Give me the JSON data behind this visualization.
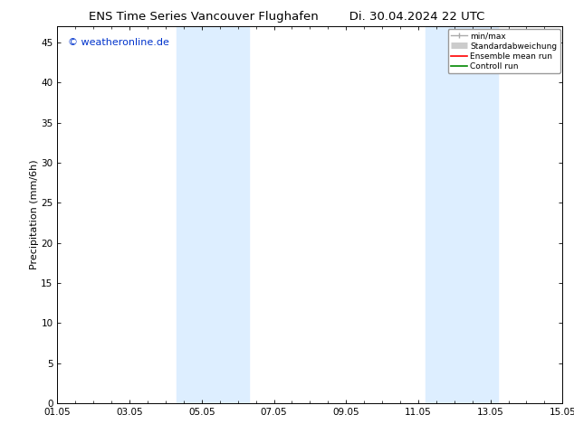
{
  "title": "ENS Time Series Vancouver Flughafen        Di. 30.04.2024 22 UTC",
  "ylabel": "Precipitation (mm/6h)",
  "ylim": [
    0,
    47
  ],
  "yticks": [
    0,
    5,
    10,
    15,
    20,
    25,
    30,
    35,
    40,
    45
  ],
  "xlim_start": 0,
  "xlim_end": 14,
  "xtick_positions": [
    0,
    2,
    4,
    6,
    8,
    10,
    12,
    14
  ],
  "xtick_labels": [
    "01.05",
    "03.05",
    "05.05",
    "07.05",
    "09.05",
    "11.05",
    "13.05",
    "15.05"
  ],
  "shaded_bands": [
    {
      "x_start": 3.3,
      "x_end": 5.3,
      "color": "#ddeeff",
      "alpha": 1.0
    },
    {
      "x_start": 10.2,
      "x_end": 12.2,
      "color": "#ddeeff",
      "alpha": 1.0
    }
  ],
  "watermark_text": "© weatheronline.de",
  "watermark_color": "#0033cc",
  "watermark_fontsize": 8,
  "bg_color": "#ffffff",
  "title_fontsize": 9.5,
  "tick_fontsize": 7.5,
  "ylabel_fontsize": 8
}
